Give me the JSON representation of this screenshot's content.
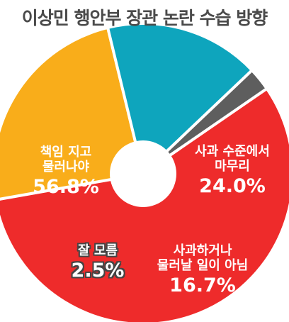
{
  "chart_data": {
    "type": "pie",
    "title": "이상민 행안부 장관 논란 수습 방향",
    "donut": true,
    "slices": [
      {
        "label_lines": [
          "책임 지고",
          "물러나야"
        ],
        "value": 56.8,
        "value_label": "56.8%",
        "color": "#ee2b2b"
      },
      {
        "label_lines": [
          "사과 수준에서",
          "마무리"
        ],
        "value": 24.0,
        "value_label": "24.0%",
        "color": "#f9ad1a"
      },
      {
        "label_lines": [
          "사과하거나",
          "물러날 일이 아님"
        ],
        "value": 16.7,
        "value_label": "16.7%",
        "color": "#0ea5bd"
      },
      {
        "label_lines": [
          "잘 모름"
        ],
        "value": 2.5,
        "value_label": "2.5%",
        "color": "#5e5e5e"
      }
    ],
    "colors": {
      "title": "#4a4a4a",
      "separator": "#ffffff",
      "center": "#ffffff"
    }
  }
}
